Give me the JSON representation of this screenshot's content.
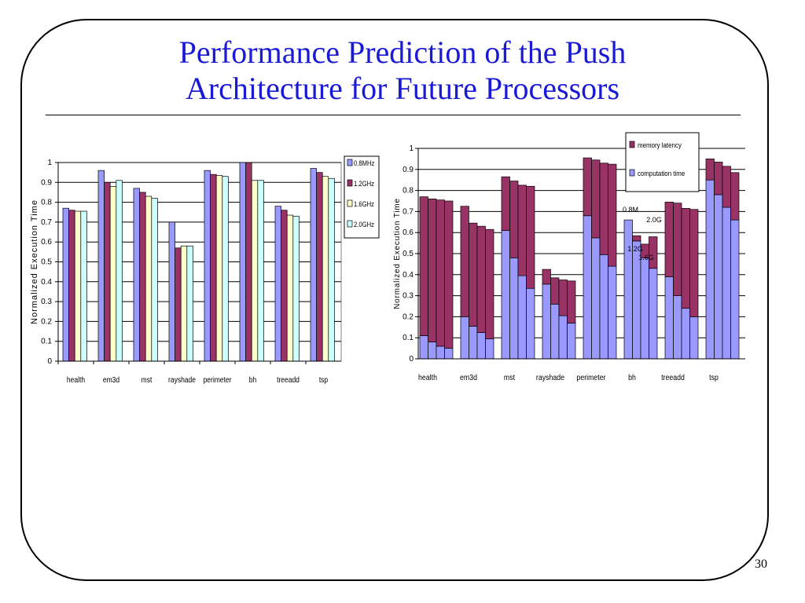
{
  "slide": {
    "title_line1": "Performance Prediction of the Push",
    "title_line2": "Architecture for Future Processors",
    "page_number": "30"
  },
  "chart_data": [
    {
      "type": "bar",
      "ylabel": "Normalized Execution Time",
      "ylim": [
        0,
        1
      ],
      "yticks": [
        "0",
        "0.1",
        "0.2",
        "0.3",
        "0.4",
        "0.5",
        "0.6",
        "0.7",
        "0.8",
        "0.9",
        "1"
      ],
      "grid": true,
      "legend_position": "right",
      "categories": [
        "health",
        "em3d",
        "mst",
        "rayshade",
        "perimeter",
        "bh",
        "treeadd",
        "tsp"
      ],
      "series": [
        {
          "name": "0.8MHz",
          "color": "#9999ff",
          "values": [
            0.77,
            0.96,
            0.87,
            0.7,
            0.96,
            1.0,
            0.78,
            0.97
          ]
        },
        {
          "name": "1.2GHz",
          "color": "#993366",
          "values": [
            0.76,
            0.9,
            0.85,
            0.57,
            0.94,
            1.0,
            0.76,
            0.95
          ]
        },
        {
          "name": "1.6GHz",
          "color": "#ffffcc",
          "values": [
            0.755,
            0.88,
            0.83,
            0.58,
            0.935,
            0.91,
            0.735,
            0.93
          ]
        },
        {
          "name": "2.0GHz",
          "color": "#ccffff",
          "values": [
            0.755,
            0.91,
            0.82,
            0.58,
            0.93,
            0.91,
            0.73,
            0.92
          ]
        }
      ]
    },
    {
      "type": "bar",
      "stacked": true,
      "ylabel": "Normalized Execution Time",
      "ylim": [
        0,
        1
      ],
      "yticks": [
        "0",
        "0.1",
        "0.2",
        "0.3",
        "0.4",
        "0.5",
        "0.6",
        "0.7",
        "0.8",
        "0.9",
        "1"
      ],
      "grid": true,
      "legend_position": "top-right",
      "categories": [
        "health",
        "em3d",
        "mst",
        "rayshade",
        "perimeter",
        "bh",
        "treeadd",
        "tsp"
      ],
      "bar_labels": [
        "0.8M",
        "1.2G",
        "1.6G",
        "2.0G"
      ],
      "series": [
        {
          "name": "computation time",
          "color": "#9999ff",
          "values": [
            [
              0.11,
              0.08,
              0.06,
              0.05
            ],
            [
              0.2,
              0.155,
              0.125,
              0.095
            ],
            [
              0.61,
              0.48,
              0.395,
              0.335
            ],
            [
              0.355,
              0.26,
              0.205,
              0.17
            ],
            [
              0.68,
              0.575,
              0.495,
              0.44
            ],
            [
              0.66,
              0.56,
              0.48,
              0.43
            ],
            [
              0.39,
              0.3,
              0.24,
              0.2
            ],
            [
              0.85,
              0.78,
              0.72,
              0.66
            ]
          ]
        },
        {
          "name": "memory latency",
          "color": "#993366",
          "values": [
            [
              0.66,
              0.68,
              0.695,
              0.7
            ],
            [
              0.525,
              0.49,
              0.505,
              0.52
            ],
            [
              0.255,
              0.365,
              0.43,
              0.485
            ],
            [
              0.07,
              0.125,
              0.17,
              0.2
            ],
            [
              0.275,
              0.37,
              0.435,
              0.485
            ],
            [
              0.0,
              0.025,
              0.065,
              0.15
            ],
            [
              0.355,
              0.44,
              0.475,
              0.51
            ],
            [
              0.1,
              0.155,
              0.195,
              0.225
            ]
          ]
        }
      ]
    }
  ]
}
